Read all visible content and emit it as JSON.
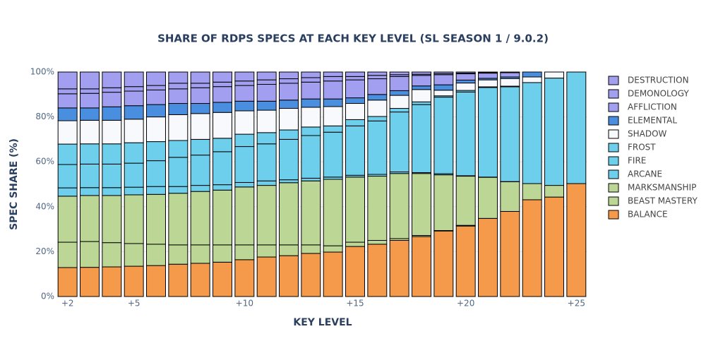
{
  "chart_data": {
    "type": "stacked-bar",
    "title": "SHARE OF RDPS SPECS AT EACH KEY LEVEL (SL SEASON 1 / 9.0.2)",
    "x_label": "KEY LEVEL",
    "y_label": "SPEC SHARE (%)",
    "x": [
      2,
      3,
      4,
      5,
      6,
      7,
      8,
      9,
      10,
      11,
      12,
      13,
      14,
      15,
      16,
      17,
      18,
      19,
      20,
      21,
      22,
      23,
      24,
      25
    ],
    "xlim": [
      1.5,
      25.5
    ],
    "xticks": [
      {
        "value": 2,
        "label": "+2"
      },
      {
        "value": 5,
        "label": "+5"
      },
      {
        "value": 10,
        "label": "+10"
      },
      {
        "value": 15,
        "label": "+15"
      },
      {
        "value": 20,
        "label": "+20"
      },
      {
        "value": 25,
        "label": "+25"
      }
    ],
    "ylim": [
      0,
      100
    ],
    "yticks": [
      {
        "value": 0,
        "label": "0%"
      },
      {
        "value": 20,
        "label": "20%"
      },
      {
        "value": 40,
        "label": "40%"
      },
      {
        "value": 60,
        "label": "60%"
      },
      {
        "value": 80,
        "label": "80%"
      },
      {
        "value": 100,
        "label": "100%"
      }
    ],
    "grid": true,
    "series": [
      {
        "name": "BALANCE",
        "color": "#f5994a",
        "values": [
          12.9,
          13,
          13.2,
          13.5,
          13.8,
          14.4,
          14.8,
          15.3,
          16.4,
          17.6,
          18.2,
          19.2,
          19.8,
          22.3,
          23.3,
          25,
          26.7,
          29.2,
          31.4,
          34.8,
          37.9,
          43.1,
          44.3,
          50.3
        ]
      },
      {
        "name": "BEAST MASTERY",
        "color": "#bcd795",
        "values": [
          11.3,
          11.5,
          10.8,
          10.1,
          9.5,
          8.6,
          8.2,
          7.7,
          6.6,
          5.4,
          4.8,
          3.8,
          2.8,
          1.9,
          1.7,
          0.8,
          0.5,
          0.2,
          0.3,
          0,
          0,
          0,
          0,
          0
        ]
      },
      {
        "name": "MARKSMANSHIP",
        "color": "#bcd795",
        "values": [
          20.5,
          20.5,
          21,
          21.7,
          22.2,
          23,
          23.8,
          24.4,
          25.8,
          26.5,
          27.7,
          28.5,
          29.6,
          29,
          28.6,
          29,
          27.6,
          24.8,
          21.9,
          18.3,
          13.2,
          7.2,
          5.2,
          0
        ]
      },
      {
        "name": "ARCANE",
        "color": "#6ecfec",
        "values": [
          3.7,
          3.5,
          3.5,
          3.4,
          3.5,
          3,
          2.7,
          2.4,
          2,
          2,
          1.3,
          1.2,
          1,
          0.8,
          0.8,
          0.7,
          0.4,
          0.5,
          0.2,
          0.1,
          0.1,
          0,
          0,
          0
        ]
      },
      {
        "name": "FIRE",
        "color": "#6ecfec",
        "values": [
          10.4,
          10.5,
          10.5,
          10.7,
          11.5,
          13,
          13.5,
          14.7,
          16,
          16.5,
          18,
          19,
          20,
          22,
          23.8,
          26.7,
          30.3,
          34.1,
          37.3,
          39.9,
          42.2,
          45,
          47.8,
          49.7
        ]
      },
      {
        "name": "FROST",
        "color": "#6ecfec",
        "values": [
          9.1,
          9,
          9,
          9.1,
          8.5,
          7.5,
          7,
          6,
          5.5,
          5,
          4.2,
          3.8,
          2.8,
          2.8,
          2,
          1.6,
          1.2,
          0.6,
          0.7,
          0.3,
          0.3,
          0,
          0,
          0
        ]
      },
      {
        "name": "SHADOW",
        "color": "#f8f9fd",
        "values": [
          10.4,
          10.5,
          10.5,
          10.5,
          11,
          11.5,
          11.5,
          11.5,
          10.4,
          10,
          9.6,
          8.8,
          8.6,
          7.2,
          7.3,
          5.8,
          5.5,
          2.5,
          3.3,
          3.1,
          3.4,
          2.5,
          2.7,
          0
        ]
      },
      {
        "name": "ELEMENTAL",
        "color": "#4a8ee0",
        "values": [
          5.7,
          5.5,
          6,
          6,
          5.5,
          5,
          4.5,
          4.5,
          4.3,
          4,
          3.7,
          3.7,
          3.4,
          2.5,
          2.5,
          2.1,
          1.6,
          2.4,
          1.3,
          0.7,
          0.7,
          2.2,
          0,
          0
        ]
      },
      {
        "name": "AFFLICTION",
        "color": "#a29ff0",
        "values": [
          6.3,
          6.5,
          6.5,
          6.5,
          6.5,
          6.5,
          7,
          7,
          7,
          7.5,
          7.5,
          7.5,
          8,
          8,
          7,
          6.3,
          4.7,
          4.5,
          2.8,
          2.3,
          1.9,
          0,
          0,
          0
        ]
      },
      {
        "name": "DEMONOLOGY",
        "color": "#a29ff0",
        "values": [
          2.2,
          2,
          2,
          2,
          2,
          2.5,
          2,
          2,
          2,
          2,
          2,
          2,
          2,
          1.5,
          1.5,
          0.8,
          0.5,
          0.5,
          0.3,
          0.2,
          0.1,
          0,
          0,
          0
        ]
      },
      {
        "name": "DESTRUCTION",
        "color": "#a29ff0",
        "values": [
          7.5,
          7.5,
          7,
          6.5,
          6,
          5,
          5,
          4.5,
          4,
          3.5,
          3,
          2.5,
          2,
          2,
          1.5,
          1.2,
          1,
          0.7,
          0.5,
          0.3,
          0.2,
          0,
          0,
          0
        ]
      }
    ]
  }
}
